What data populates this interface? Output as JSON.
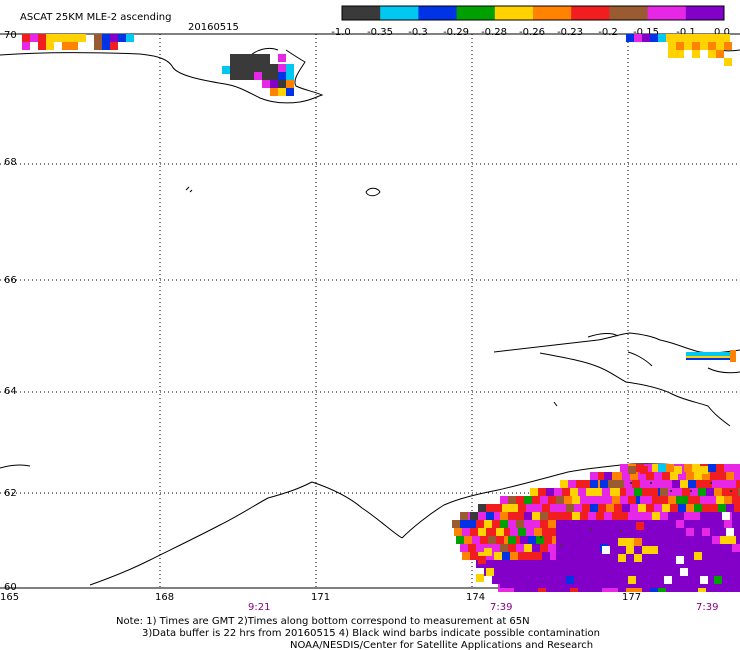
{
  "title": "ASCAT 25KM MLE-2 ascending",
  "date": "20160515",
  "colorbar": {
    "colors": [
      "#3a3a3a",
      "#00c8f0",
      "#0032e6",
      "#00a000",
      "#ffd200",
      "#ff8200",
      "#f01e1e",
      "#9a5a32",
      "#e628e6",
      "#8200c8"
    ],
    "labels": [
      "-1.0",
      "-0.35",
      "-0.3",
      "-0.29",
      "-0.28",
      "-0.26",
      "-0.23",
      "-0.2",
      "-0.15",
      "-0.1",
      "0.0"
    ]
  },
  "lat_labels": [
    "70",
    "68",
    "66",
    "64",
    "62",
    "60"
  ],
  "lon_labels": [
    "165",
    "168",
    "171",
    "174",
    "177"
  ],
  "times": [
    "9:21",
    "7:39",
    "7:39"
  ],
  "notes": [
    "Note: 1) Times are GMT 2)Times along bottom correspond to measurement at 65N",
    "3)Data buffer is 22 hrs from 20160515 4) Black wind barbs indicate possible contamination",
    "NOAA/NESDIS/Center for Satellite Applications and Research"
  ]
}
